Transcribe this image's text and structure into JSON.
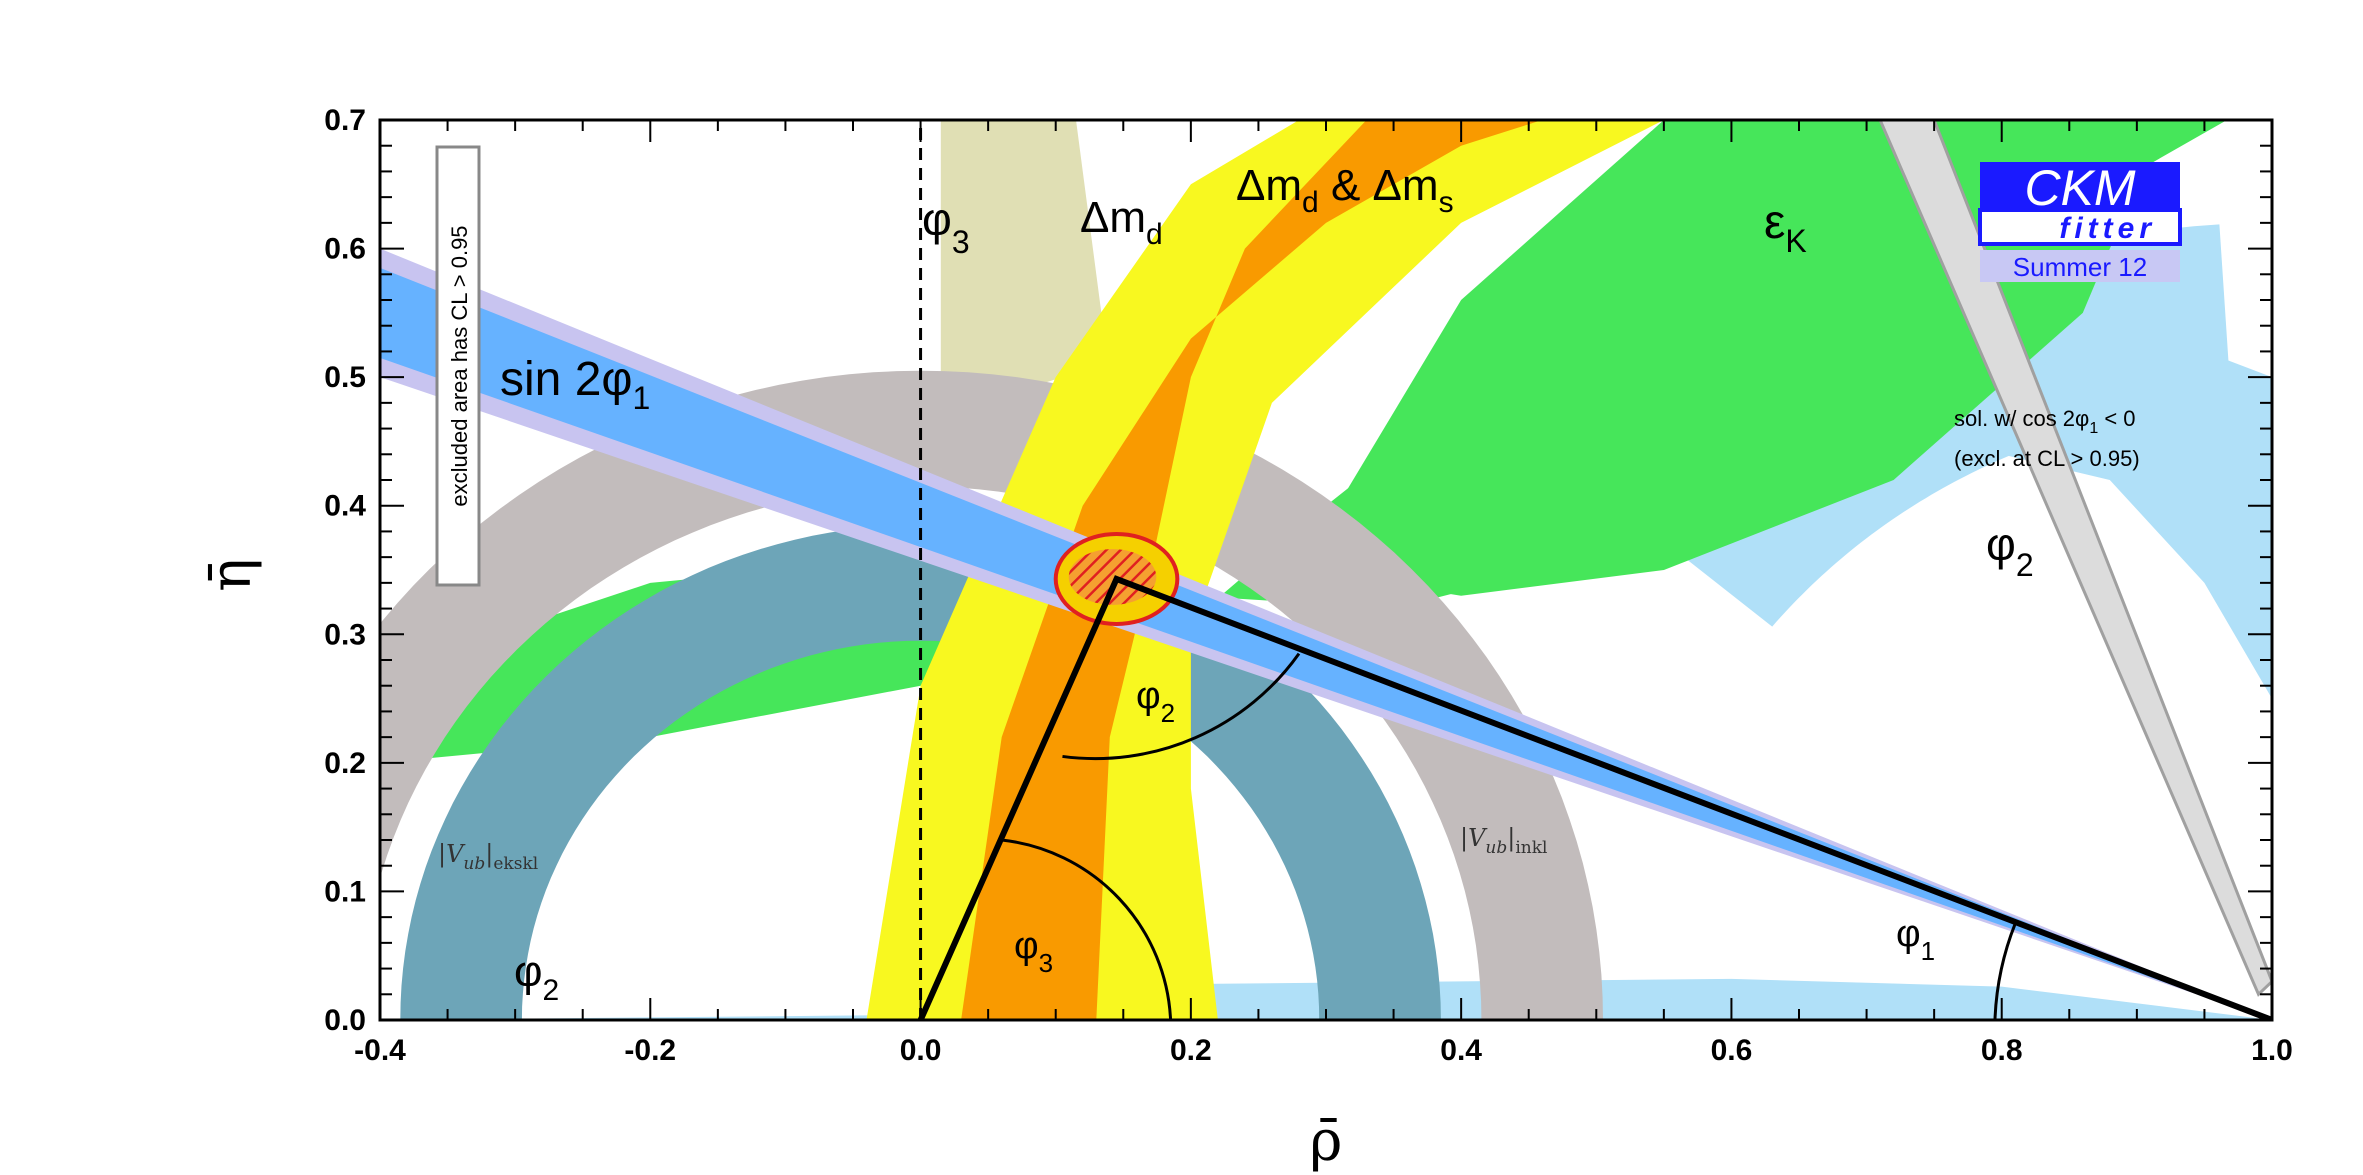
{
  "chart_data": {
    "type": "area",
    "xlabel": "ρ̄",
    "ylabel": "η̄",
    "xlim": [
      -0.4,
      1.0
    ],
    "ylim": [
      0.0,
      0.7
    ],
    "x_ticks": [
      "-0.4",
      "-0.2",
      "0.0",
      "0.2",
      "0.4",
      "0.6",
      "0.8",
      "1.0"
    ],
    "x_tick_values": [
      -0.4,
      -0.2,
      0.0,
      0.2,
      0.4,
      0.6,
      0.8,
      1.0
    ],
    "y_ticks": [
      "0.0",
      "0.1",
      "0.2",
      "0.3",
      "0.4",
      "0.5",
      "0.6",
      "0.7"
    ],
    "y_tick_values": [
      0.0,
      0.1,
      0.2,
      0.3,
      0.4,
      0.5,
      0.6,
      0.7
    ],
    "triangle": {
      "apex": [
        0.145,
        0.343
      ],
      "origin": [
        0.0,
        0.0
      ],
      "corner": [
        1.0,
        0.0
      ]
    },
    "fit_region": {
      "center": [
        0.145,
        0.343
      ],
      "half_width": 0.045,
      "half_height": 0.035
    },
    "constraints": [
      {
        "name": "sin 2φ1",
        "color": "#66b2ff",
        "outline": "#c8c4f0"
      },
      {
        "name": "Δmd",
        "color": "#f8f820"
      },
      {
        "name": "Δmd & Δms",
        "color": "#f99a00"
      },
      {
        "name": "εK",
        "color": "#46e65a"
      },
      {
        "name": "φ2",
        "color": "#b0e0f8"
      },
      {
        "name": "φ3",
        "color": "#e0dfb4"
      },
      {
        "name": "|Vub|eksk",
        "color": "#6da5b8"
      },
      {
        "name": "|Vub|inkl",
        "color": "#c2bcbc"
      },
      {
        "name": "sol. w/ cos 2φ1 < 0",
        "color": "#dcdcdc"
      }
    ],
    "labels": {
      "phi3_top": "φ",
      "phi3_top_sub": "3",
      "dmd": "Δm",
      "dmd_sub": "d",
      "dmdms_a": "Δm",
      "dmdms_a_sub": "d",
      "dmdms_amp": " & Δm",
      "dmdms_b_sub": "s",
      "epsk": "ε",
      "epsk_sub": "K",
      "sin2phi1": "sin 2φ",
      "sin2phi1_sub": "1",
      "phi2_right": "φ",
      "phi2_right_sub": "2",
      "phi2_bottom": "φ",
      "phi2_bottom_sub": "2",
      "phi2_triangle": "φ",
      "phi2_triangle_sub": "2",
      "phi3_triangle": "φ",
      "phi3_triangle_sub": "3",
      "phi1_triangle": "φ",
      "phi1_triangle_sub": "1",
      "vub_eksk": "|V",
      "vub_eksk_sub1": "ub",
      "vub_eksk_tail": "|",
      "vub_eksk_sub2": "ekskl",
      "vub_inkl": "|V",
      "vub_inkl_sub1": "ub",
      "vub_inkl_tail": "|",
      "vub_inkl_sub2": "inkl",
      "excluded_note": "excluded area has CL > 0.95",
      "sol_note_a": "sol. w/ cos 2φ",
      "sol_note_a_sub": "1",
      "sol_note_a_tail": " < 0",
      "sol_note_b": "(excl. at CL > 0.95)"
    },
    "logo": {
      "line1": "CKM",
      "line2": "fitter",
      "line3": "Summer 12"
    }
  }
}
